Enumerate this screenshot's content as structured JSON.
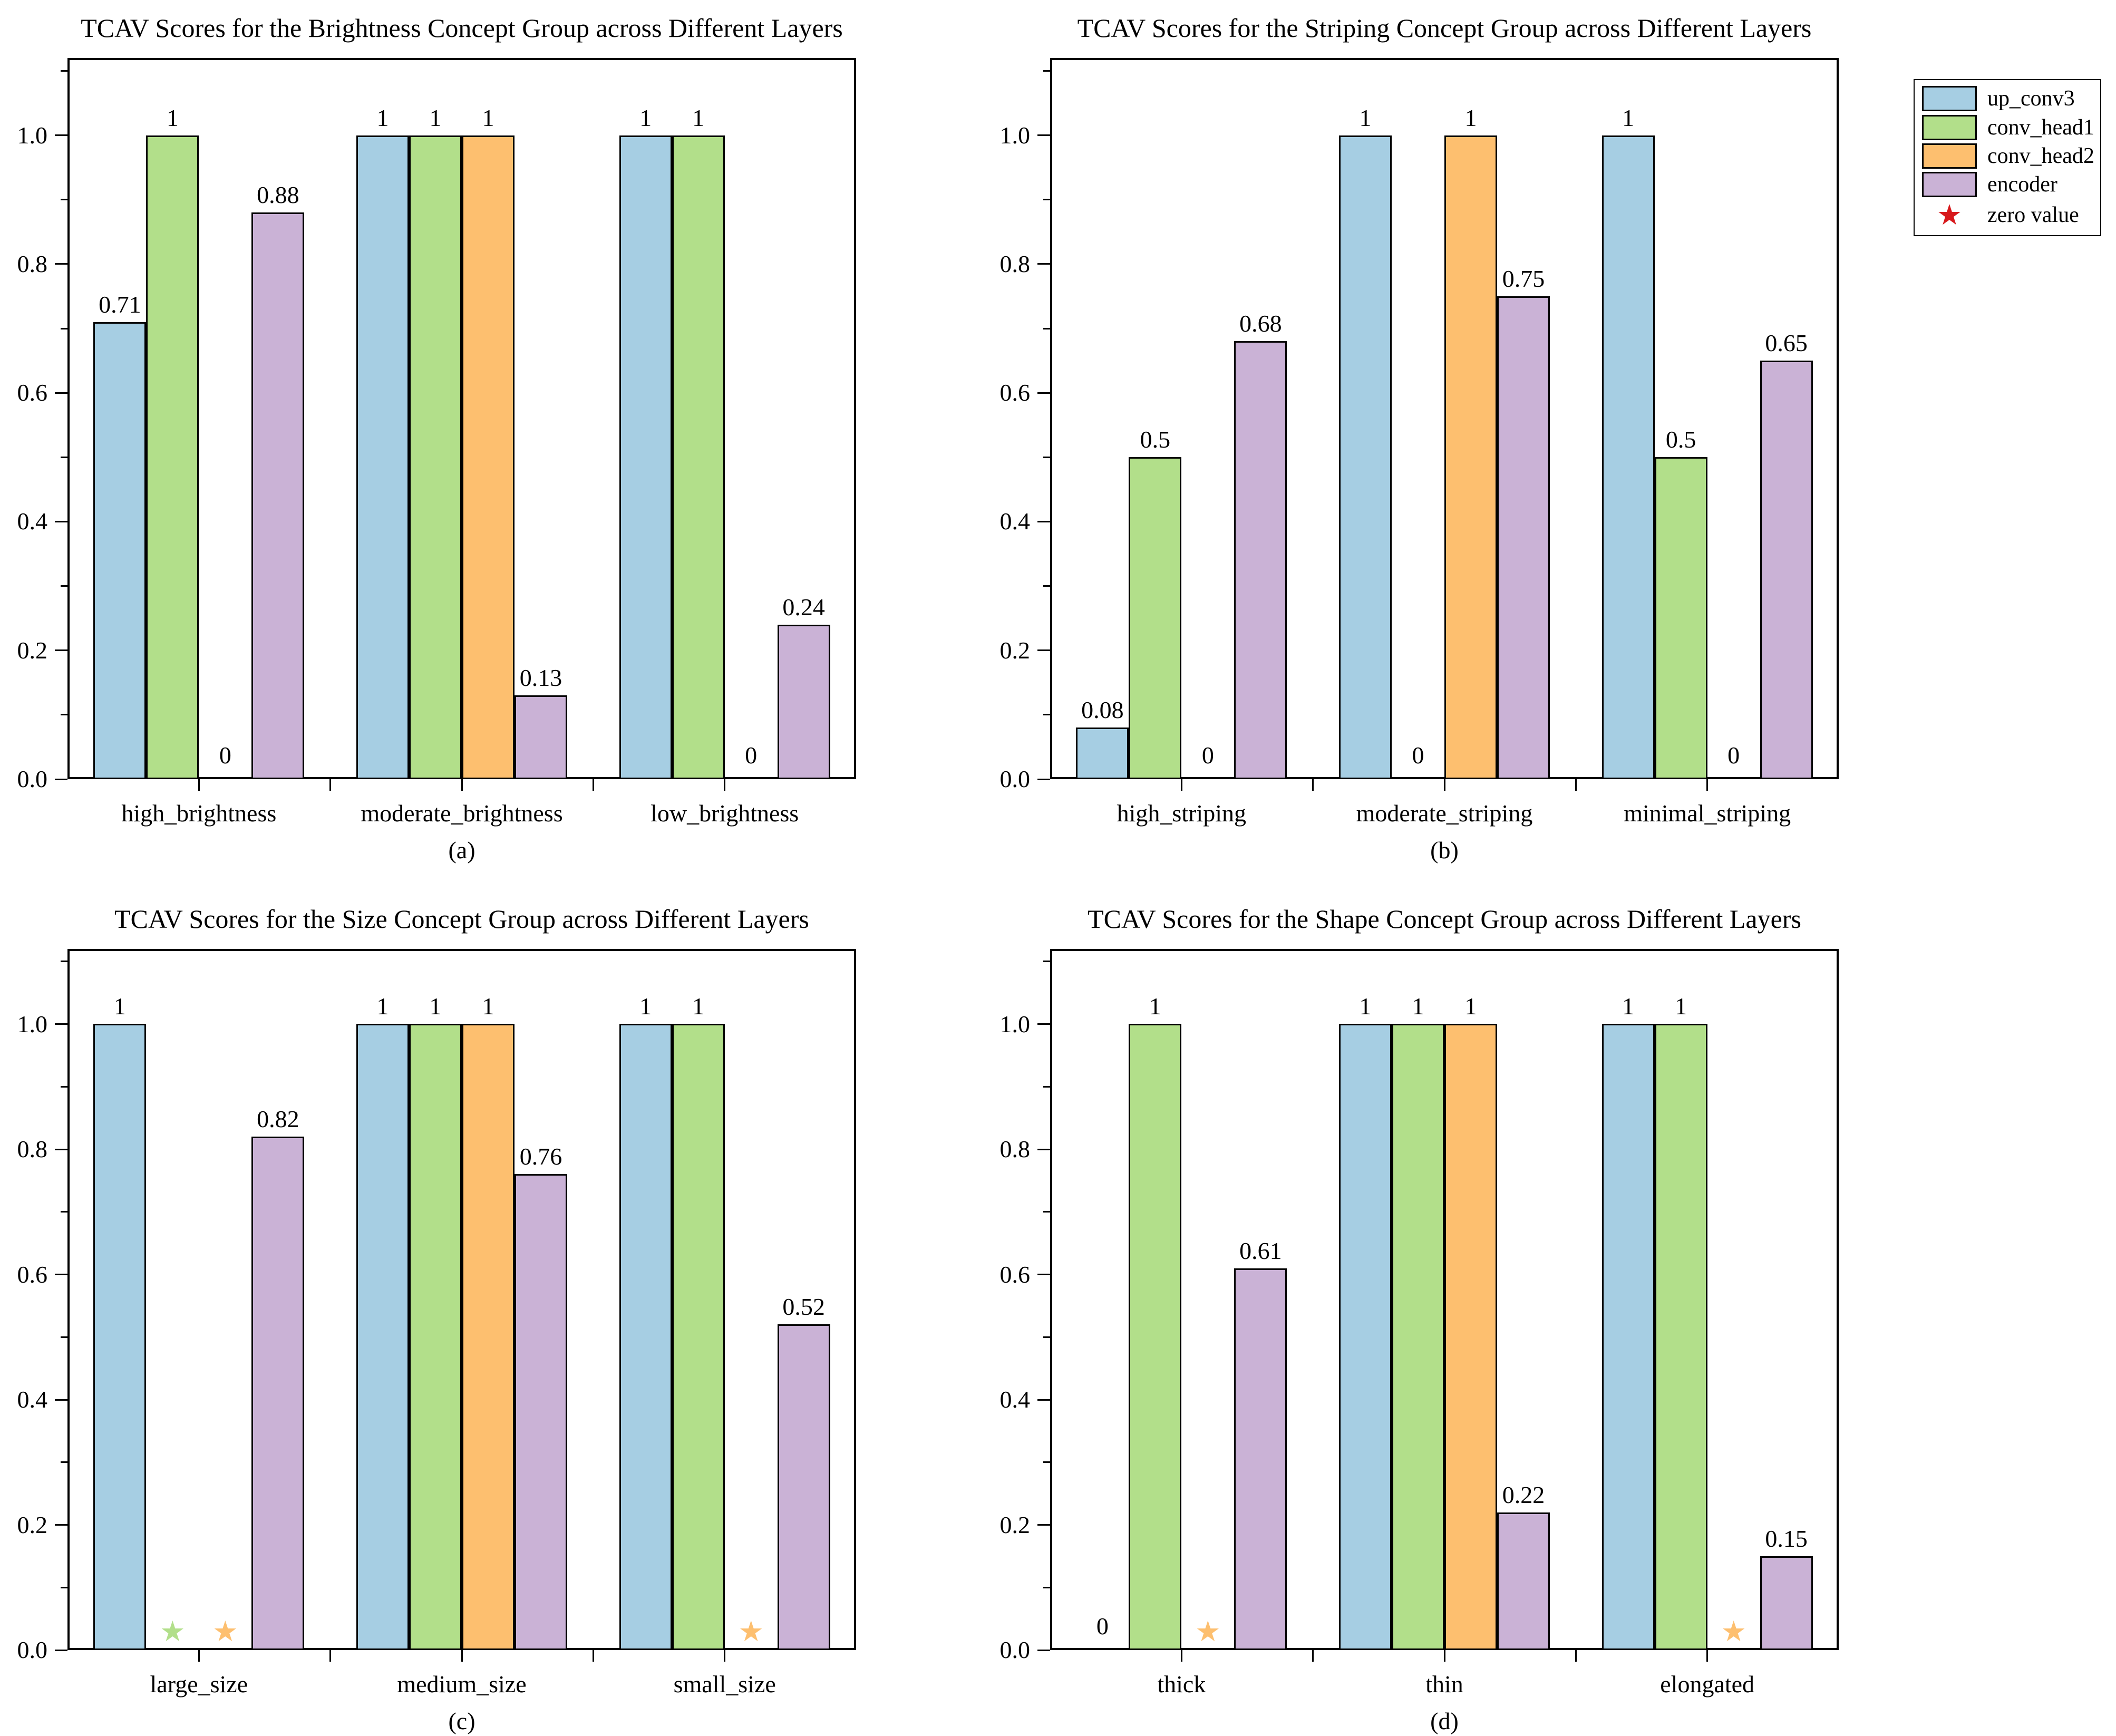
{
  "figure": {
    "background": "#ffffff"
  },
  "legend": {
    "items": [
      {
        "label": "up_conv3",
        "color": "#a6cee3"
      },
      {
        "label": "conv_head1",
        "color": "#b2df8a"
      },
      {
        "label": "conv_head2",
        "color": "#fdbf6f"
      },
      {
        "label": "encoder",
        "color": "#cab2d6"
      }
    ],
    "zero_item": {
      "label": "zero value",
      "symbol": "★",
      "color": "#d7191c"
    }
  },
  "axes": {
    "ylim": [
      0,
      1.12
    ],
    "yticks_major": [
      0.0,
      0.2,
      0.4,
      0.6,
      0.8,
      1.0
    ],
    "ytick_labels": [
      "0.0",
      "0.2",
      "0.4",
      "0.6",
      "0.8",
      "1.0"
    ],
    "yticks_minor": [
      0.1,
      0.3,
      0.5,
      0.7,
      0.9,
      1.1
    ],
    "grid": false
  },
  "chart_data": [
    {
      "type": "bar",
      "panel": "(a)",
      "title": "TCAV Scores for the Brightness Concept Group across Different Layers",
      "categories": [
        "high_brightness",
        "moderate_brightness",
        "low_brightness"
      ],
      "series": [
        {
          "name": "up_conv3",
          "values": [
            0.71,
            1,
            1
          ],
          "zero_marks": [
            "",
            "",
            ""
          ]
        },
        {
          "name": "conv_head1",
          "values": [
            1,
            1,
            1
          ],
          "zero_marks": [
            "",
            "",
            ""
          ]
        },
        {
          "name": "conv_head2",
          "values": [
            0,
            1,
            0
          ],
          "zero_marks": [
            "text",
            "",
            "text"
          ]
        },
        {
          "name": "encoder",
          "values": [
            0.88,
            0.13,
            0.24
          ],
          "zero_marks": [
            "",
            "",
            ""
          ]
        }
      ]
    },
    {
      "type": "bar",
      "panel": "(b)",
      "title": "TCAV Scores for the Striping Concept Group across Different Layers",
      "categories": [
        "high_striping",
        "moderate_striping",
        "minimal_striping"
      ],
      "series": [
        {
          "name": "up_conv3",
          "values": [
            0.08,
            1,
            1
          ],
          "zero_marks": [
            "",
            "",
            ""
          ]
        },
        {
          "name": "conv_head1",
          "values": [
            0.5,
            0,
            0.5
          ],
          "zero_marks": [
            "",
            "text",
            ""
          ]
        },
        {
          "name": "conv_head2",
          "values": [
            0,
            1,
            0
          ],
          "zero_marks": [
            "text",
            "",
            "text"
          ]
        },
        {
          "name": "encoder",
          "values": [
            0.68,
            0.75,
            0.65
          ],
          "zero_marks": [
            "",
            "",
            ""
          ]
        }
      ]
    },
    {
      "type": "bar",
      "panel": "(c)",
      "title": "TCAV Scores for the Size Concept Group across Different Layers",
      "categories": [
        "large_size",
        "medium_size",
        "small_size"
      ],
      "series": [
        {
          "name": "up_conv3",
          "values": [
            1,
            1,
            1
          ],
          "zero_marks": [
            "",
            "",
            ""
          ]
        },
        {
          "name": "conv_head1",
          "values": [
            0,
            1,
            1
          ],
          "zero_marks": [
            "star",
            "",
            ""
          ]
        },
        {
          "name": "conv_head2",
          "values": [
            0,
            1,
            0
          ],
          "zero_marks": [
            "star",
            "",
            "star"
          ]
        },
        {
          "name": "encoder",
          "values": [
            0.82,
            0.76,
            0.52
          ],
          "zero_marks": [
            "",
            "",
            ""
          ]
        }
      ]
    },
    {
      "type": "bar",
      "panel": "(d)",
      "title": "TCAV Scores for the Shape Concept Group across Different Layers",
      "categories": [
        "thick",
        "thin",
        "elongated"
      ],
      "series": [
        {
          "name": "up_conv3",
          "values": [
            0,
            1,
            1
          ],
          "zero_marks": [
            "text",
            "",
            ""
          ]
        },
        {
          "name": "conv_head1",
          "values": [
            1,
            1,
            1
          ],
          "zero_marks": [
            "",
            "",
            ""
          ]
        },
        {
          "name": "conv_head2",
          "values": [
            0,
            1,
            0
          ],
          "zero_marks": [
            "star",
            "",
            "star"
          ]
        },
        {
          "name": "encoder",
          "values": [
            0.61,
            0.22,
            0.15
          ],
          "zero_marks": [
            "",
            "",
            ""
          ]
        }
      ]
    }
  ]
}
